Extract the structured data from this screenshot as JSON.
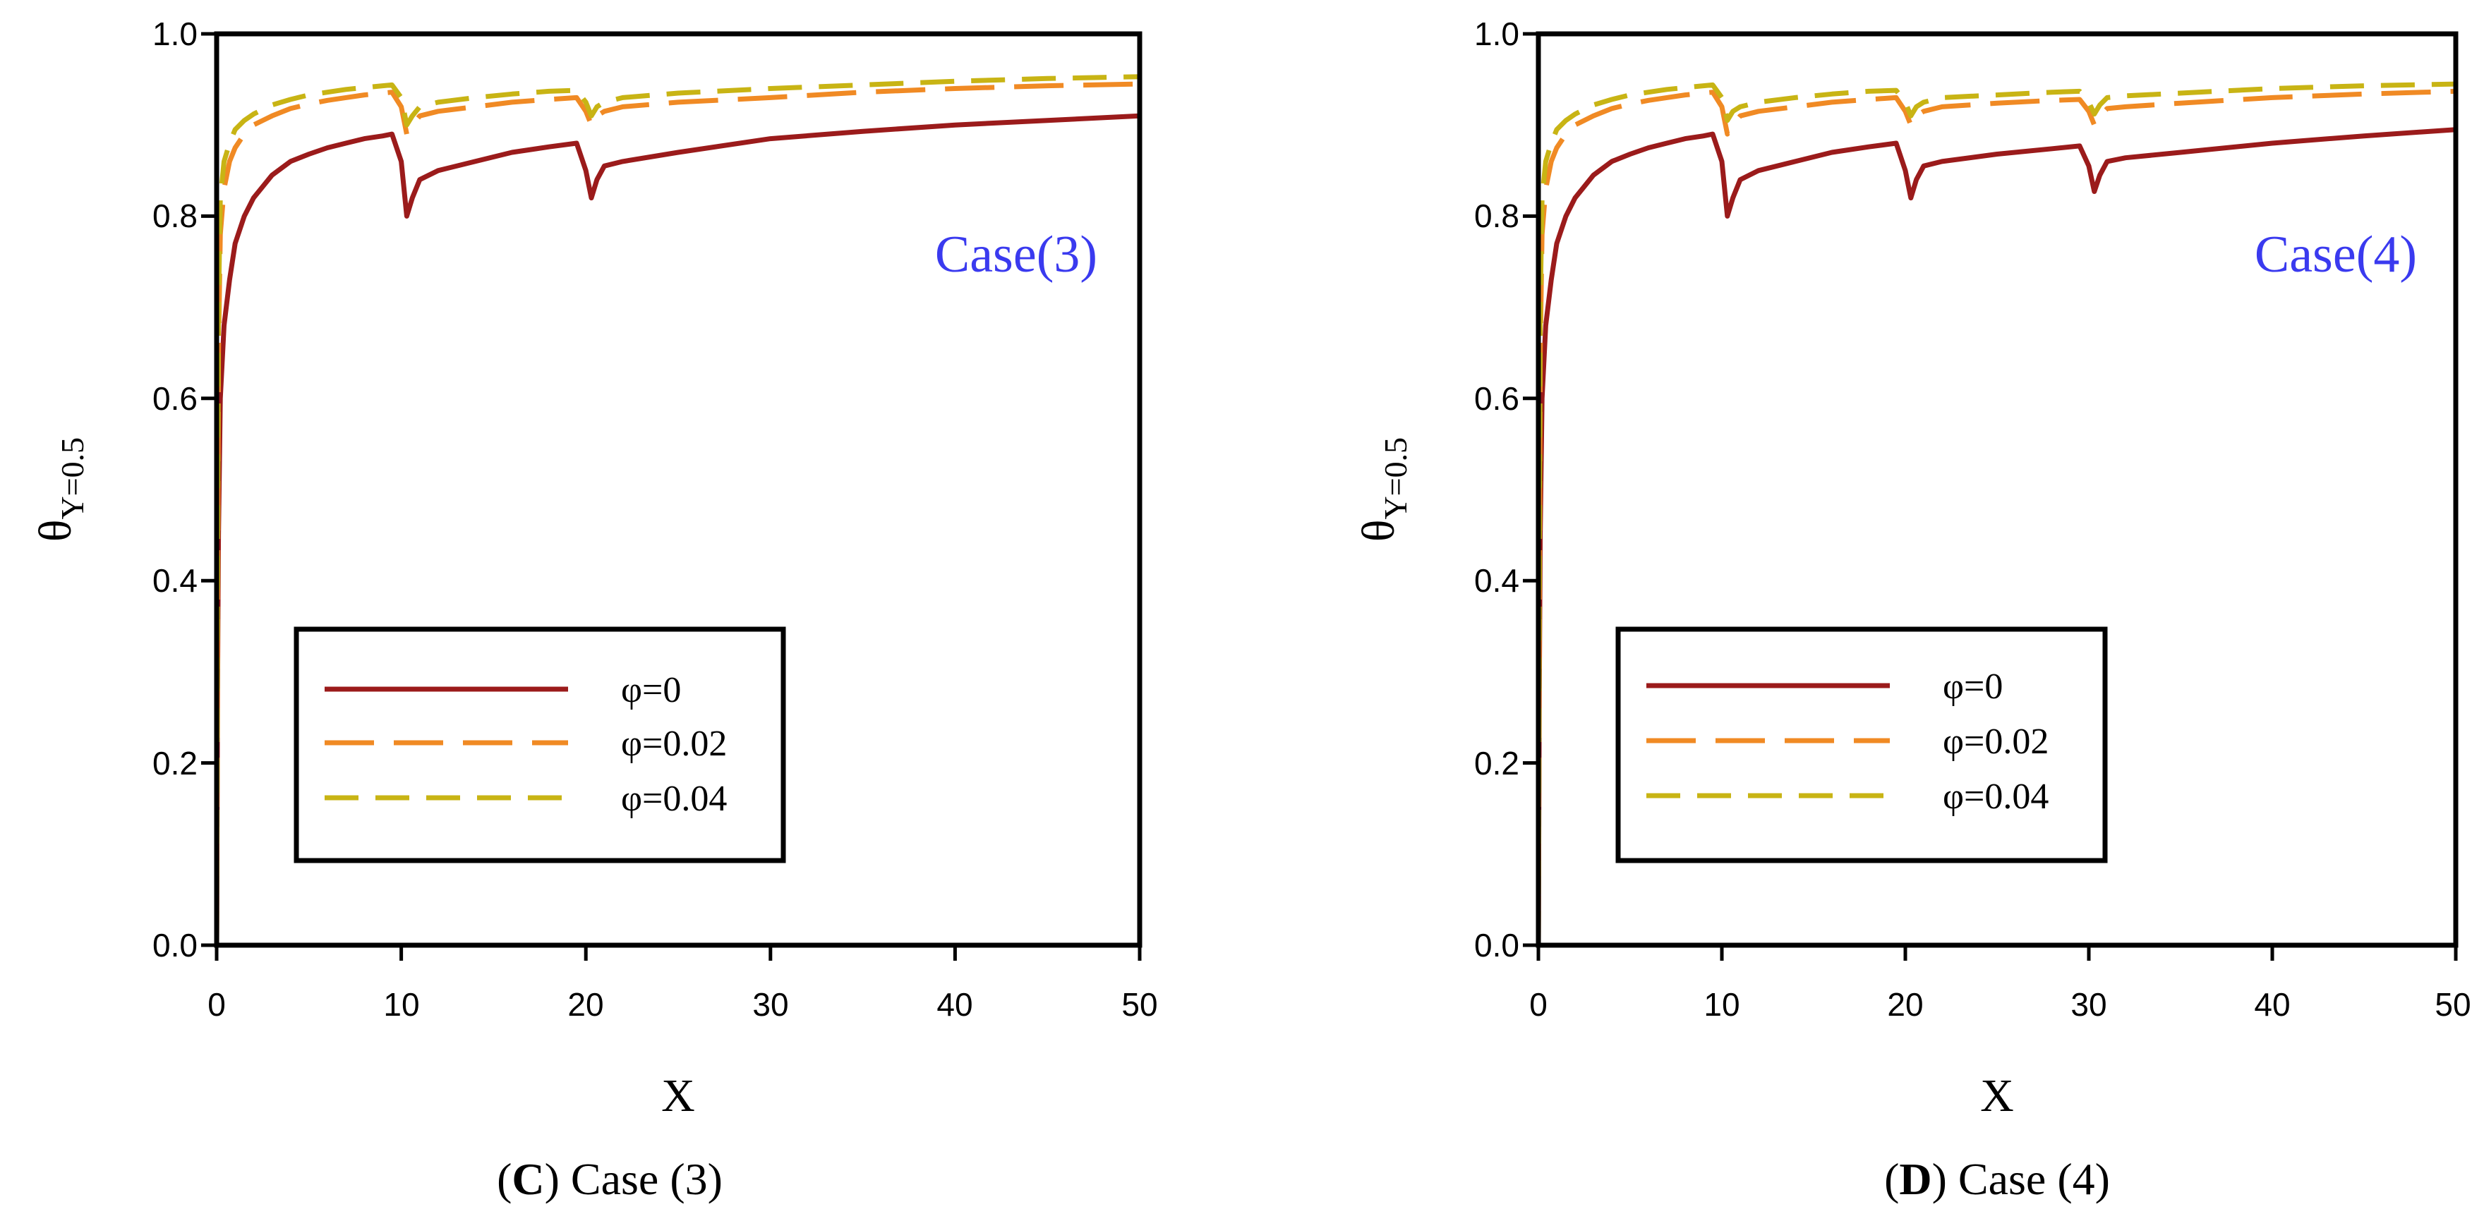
{
  "chart_data": [
    {
      "type": "line",
      "panel_letter": "C",
      "caption_text": " Case (3)",
      "annotation": "Case(3)",
      "xlabel": "X",
      "ylabel_main": "θ",
      "ylabel_sub": "Y=0.5",
      "xlim": [
        0,
        50
      ],
      "ylim": [
        0,
        1.0
      ],
      "xticks": [
        0,
        10,
        20,
        30,
        40,
        50
      ],
      "xtick_labels": [
        "0",
        "10",
        "20",
        "30",
        "40",
        "50"
      ],
      "yticks": [
        0,
        0.2,
        0.4,
        0.6,
        0.8,
        1.0
      ],
      "ytick_labels": [
        "0.0",
        "0.2",
        "0.4",
        "0.6",
        "0.8",
        "1.0"
      ],
      "series": [
        {
          "name": "φ=0",
          "color": "#9b1b1b",
          "style": "solid",
          "x": [
            0,
            0.05,
            0.1,
            0.2,
            0.4,
            0.7,
            1.0,
            1.5,
            2,
            3,
            4,
            5,
            6,
            7,
            8,
            9,
            9.5,
            10.0,
            10.3,
            10.6,
            11,
            12,
            14,
            16,
            18,
            19.5,
            20.0,
            20.3,
            20.6,
            21,
            22,
            25,
            30,
            35,
            40,
            45,
            50
          ],
          "y": [
            0.0,
            0.28,
            0.45,
            0.6,
            0.68,
            0.73,
            0.77,
            0.8,
            0.82,
            0.845,
            0.86,
            0.868,
            0.875,
            0.88,
            0.885,
            0.888,
            0.89,
            0.86,
            0.8,
            0.82,
            0.84,
            0.85,
            0.86,
            0.87,
            0.876,
            0.88,
            0.85,
            0.82,
            0.84,
            0.855,
            0.86,
            0.87,
            0.885,
            0.893,
            0.9,
            0.905,
            0.91
          ]
        },
        {
          "name": "φ=0.02",
          "color": "#f08a24",
          "style": "long-dash",
          "x": [
            0,
            0.05,
            0.1,
            0.2,
            0.4,
            0.7,
            1.0,
            1.5,
            2,
            3,
            4,
            5,
            6,
            7,
            8,
            9,
            9.5,
            10.0,
            10.3,
            10.6,
            11,
            12,
            14,
            16,
            18,
            19.5,
            20.0,
            20.3,
            20.6,
            21,
            22,
            25,
            30,
            35,
            40,
            45,
            50
          ],
          "y": [
            0.0,
            0.35,
            0.65,
            0.78,
            0.83,
            0.86,
            0.875,
            0.89,
            0.9,
            0.91,
            0.918,
            0.923,
            0.927,
            0.93,
            0.933,
            0.935,
            0.936,
            0.92,
            0.89,
            0.9,
            0.91,
            0.915,
            0.92,
            0.925,
            0.928,
            0.93,
            0.915,
            0.9,
            0.91,
            0.915,
            0.92,
            0.925,
            0.93,
            0.936,
            0.94,
            0.943,
            0.945
          ]
        },
        {
          "name": "φ=0.04",
          "color": "#c8b414",
          "style": "dash",
          "x": [
            0,
            0.05,
            0.1,
            0.2,
            0.4,
            0.7,
            1.0,
            1.5,
            2,
            3,
            4,
            5,
            6,
            7,
            8,
            9,
            9.5,
            10.0,
            10.3,
            10.6,
            11,
            12,
            14,
            16,
            18,
            19.5,
            20.0,
            20.3,
            20.6,
            21,
            22,
            25,
            30,
            35,
            40,
            45,
            50
          ],
          "y": [
            0.0,
            0.4,
            0.7,
            0.82,
            0.86,
            0.88,
            0.895,
            0.905,
            0.912,
            0.922,
            0.928,
            0.933,
            0.936,
            0.939,
            0.941,
            0.943,
            0.944,
            0.93,
            0.9,
            0.91,
            0.92,
            0.925,
            0.93,
            0.934,
            0.937,
            0.938,
            0.925,
            0.91,
            0.92,
            0.925,
            0.93,
            0.935,
            0.94,
            0.944,
            0.948,
            0.951,
            0.953
          ]
        }
      ],
      "legend": [
        "φ=0",
        "φ=0.02",
        "φ=0.04"
      ]
    },
    {
      "type": "line",
      "panel_letter": "D",
      "caption_text": " Case (4)",
      "annotation": "Case(4)",
      "xlabel": "X",
      "ylabel_main": "θ",
      "ylabel_sub": "Y=0.5",
      "xlim": [
        0,
        50
      ],
      "ylim": [
        0,
        1.0
      ],
      "xticks": [
        0,
        10,
        20,
        30,
        40,
        50
      ],
      "xtick_labels": [
        "0",
        "10",
        "20",
        "30",
        "40",
        "50"
      ],
      "yticks": [
        0,
        0.2,
        0.4,
        0.6,
        0.8,
        1.0
      ],
      "ytick_labels": [
        "0.0",
        "0.2",
        "0.4",
        "0.6",
        "0.8",
        "1.0"
      ],
      "series": [
        {
          "name": "φ=0",
          "color": "#9b1b1b",
          "style": "solid",
          "x": [
            0,
            0.05,
            0.1,
            0.2,
            0.4,
            0.7,
            1.0,
            1.5,
            2,
            3,
            4,
            5,
            6,
            7,
            8,
            9,
            9.5,
            10.0,
            10.3,
            10.6,
            11,
            12,
            14,
            16,
            18,
            19.5,
            20.0,
            20.3,
            20.6,
            21,
            22,
            25,
            28,
            29.5,
            30.0,
            30.3,
            30.6,
            31,
            32,
            35,
            40,
            45,
            50
          ],
          "y": [
            0.0,
            0.28,
            0.45,
            0.6,
            0.68,
            0.73,
            0.77,
            0.8,
            0.82,
            0.845,
            0.86,
            0.868,
            0.875,
            0.88,
            0.885,
            0.888,
            0.89,
            0.86,
            0.8,
            0.82,
            0.84,
            0.85,
            0.86,
            0.87,
            0.876,
            0.88,
            0.85,
            0.82,
            0.84,
            0.855,
            0.86,
            0.868,
            0.874,
            0.877,
            0.855,
            0.827,
            0.845,
            0.86,
            0.864,
            0.87,
            0.88,
            0.888,
            0.895
          ]
        },
        {
          "name": "φ=0.02",
          "color": "#f08a24",
          "style": "long-dash",
          "x": [
            0,
            0.05,
            0.1,
            0.2,
            0.4,
            0.7,
            1.0,
            1.5,
            2,
            3,
            4,
            5,
            6,
            7,
            8,
            9,
            9.5,
            10.0,
            10.3,
            10.6,
            11,
            12,
            14,
            16,
            18,
            19.5,
            20.0,
            20.3,
            20.6,
            21,
            22,
            25,
            28,
            29.5,
            30.0,
            30.3,
            30.6,
            31,
            32,
            35,
            40,
            45,
            50
          ],
          "y": [
            0.0,
            0.35,
            0.65,
            0.78,
            0.83,
            0.86,
            0.875,
            0.89,
            0.9,
            0.91,
            0.918,
            0.923,
            0.927,
            0.93,
            0.933,
            0.935,
            0.936,
            0.92,
            0.89,
            0.9,
            0.91,
            0.915,
            0.92,
            0.925,
            0.928,
            0.93,
            0.915,
            0.9,
            0.91,
            0.915,
            0.92,
            0.924,
            0.927,
            0.928,
            0.915,
            0.9,
            0.91,
            0.918,
            0.92,
            0.924,
            0.93,
            0.934,
            0.937
          ]
        },
        {
          "name": "φ=0.04",
          "color": "#c8b414",
          "style": "dash",
          "x": [
            0,
            0.05,
            0.1,
            0.2,
            0.4,
            0.7,
            1.0,
            1.5,
            2,
            3,
            4,
            5,
            6,
            7,
            8,
            9,
            9.5,
            10.0,
            10.3,
            10.6,
            11,
            12,
            14,
            16,
            18,
            19.5,
            20.0,
            20.3,
            20.6,
            21,
            22,
            25,
            28,
            29.5,
            30.0,
            30.3,
            30.6,
            31,
            32,
            35,
            40,
            45,
            50
          ],
          "y": [
            0.0,
            0.4,
            0.7,
            0.82,
            0.86,
            0.88,
            0.895,
            0.905,
            0.912,
            0.922,
            0.928,
            0.933,
            0.936,
            0.939,
            0.941,
            0.943,
            0.944,
            0.93,
            0.905,
            0.915,
            0.92,
            0.925,
            0.93,
            0.934,
            0.937,
            0.938,
            0.925,
            0.91,
            0.92,
            0.925,
            0.93,
            0.933,
            0.936,
            0.937,
            0.925,
            0.912,
            0.922,
            0.93,
            0.932,
            0.935,
            0.94,
            0.943,
            0.945
          ]
        }
      ],
      "legend": [
        "φ=0",
        "φ=0.02",
        "φ=0.04"
      ]
    }
  ],
  "colors": {
    "annotation": "#3a3aef",
    "axis": "#000000"
  }
}
